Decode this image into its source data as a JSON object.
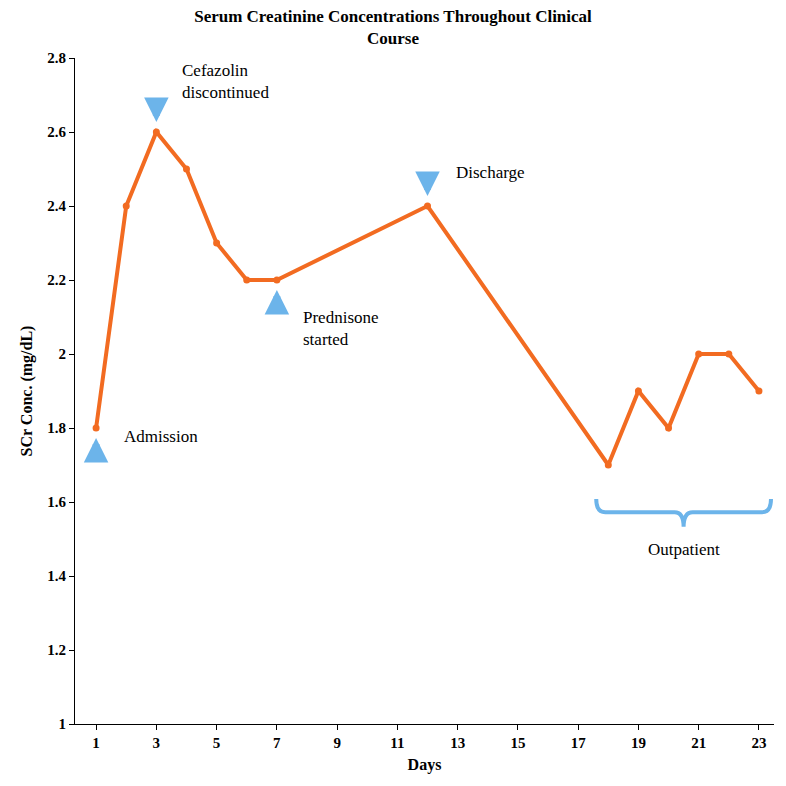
{
  "chart_data": {
    "type": "line",
    "title": "Serum Creatinine Concentrations Throughout Clinical\nCourse",
    "x_label": "Days",
    "y_label": "SCr Conc. (mg/dL)",
    "x": [
      1,
      2,
      3,
      4,
      5,
      6,
      7,
      12,
      18,
      19,
      20,
      21,
      22,
      23
    ],
    "values": [
      1.8,
      2.4,
      2.6,
      2.5,
      2.3,
      2.2,
      2.2,
      2.4,
      1.7,
      1.9,
      1.8,
      2.0,
      2.0,
      1.9
    ],
    "color": "#f26b21",
    "marker": "circle",
    "line_style": "solid",
    "xlim": [
      0.3,
      23.5
    ],
    "xticks": [
      1,
      3,
      5,
      7,
      9,
      11,
      13,
      15,
      17,
      19,
      21,
      23
    ],
    "ylim": [
      1,
      2.8
    ],
    "yticks": [
      1,
      1.2,
      1.4,
      1.6,
      1.8,
      2,
      2.2,
      2.4,
      2.6,
      2.8
    ],
    "grid": false,
    "annotations": [
      {
        "text": "Admission",
        "x": 1
      },
      {
        "text": "Cefazolin\ndiscontinued",
        "x": 3
      },
      {
        "text": "Prednisone\nstarted",
        "x": 7
      },
      {
        "text": "Discharge",
        "x": 12
      },
      {
        "text": "Outpatient",
        "x": [
          18,
          23
        ]
      }
    ]
  }
}
